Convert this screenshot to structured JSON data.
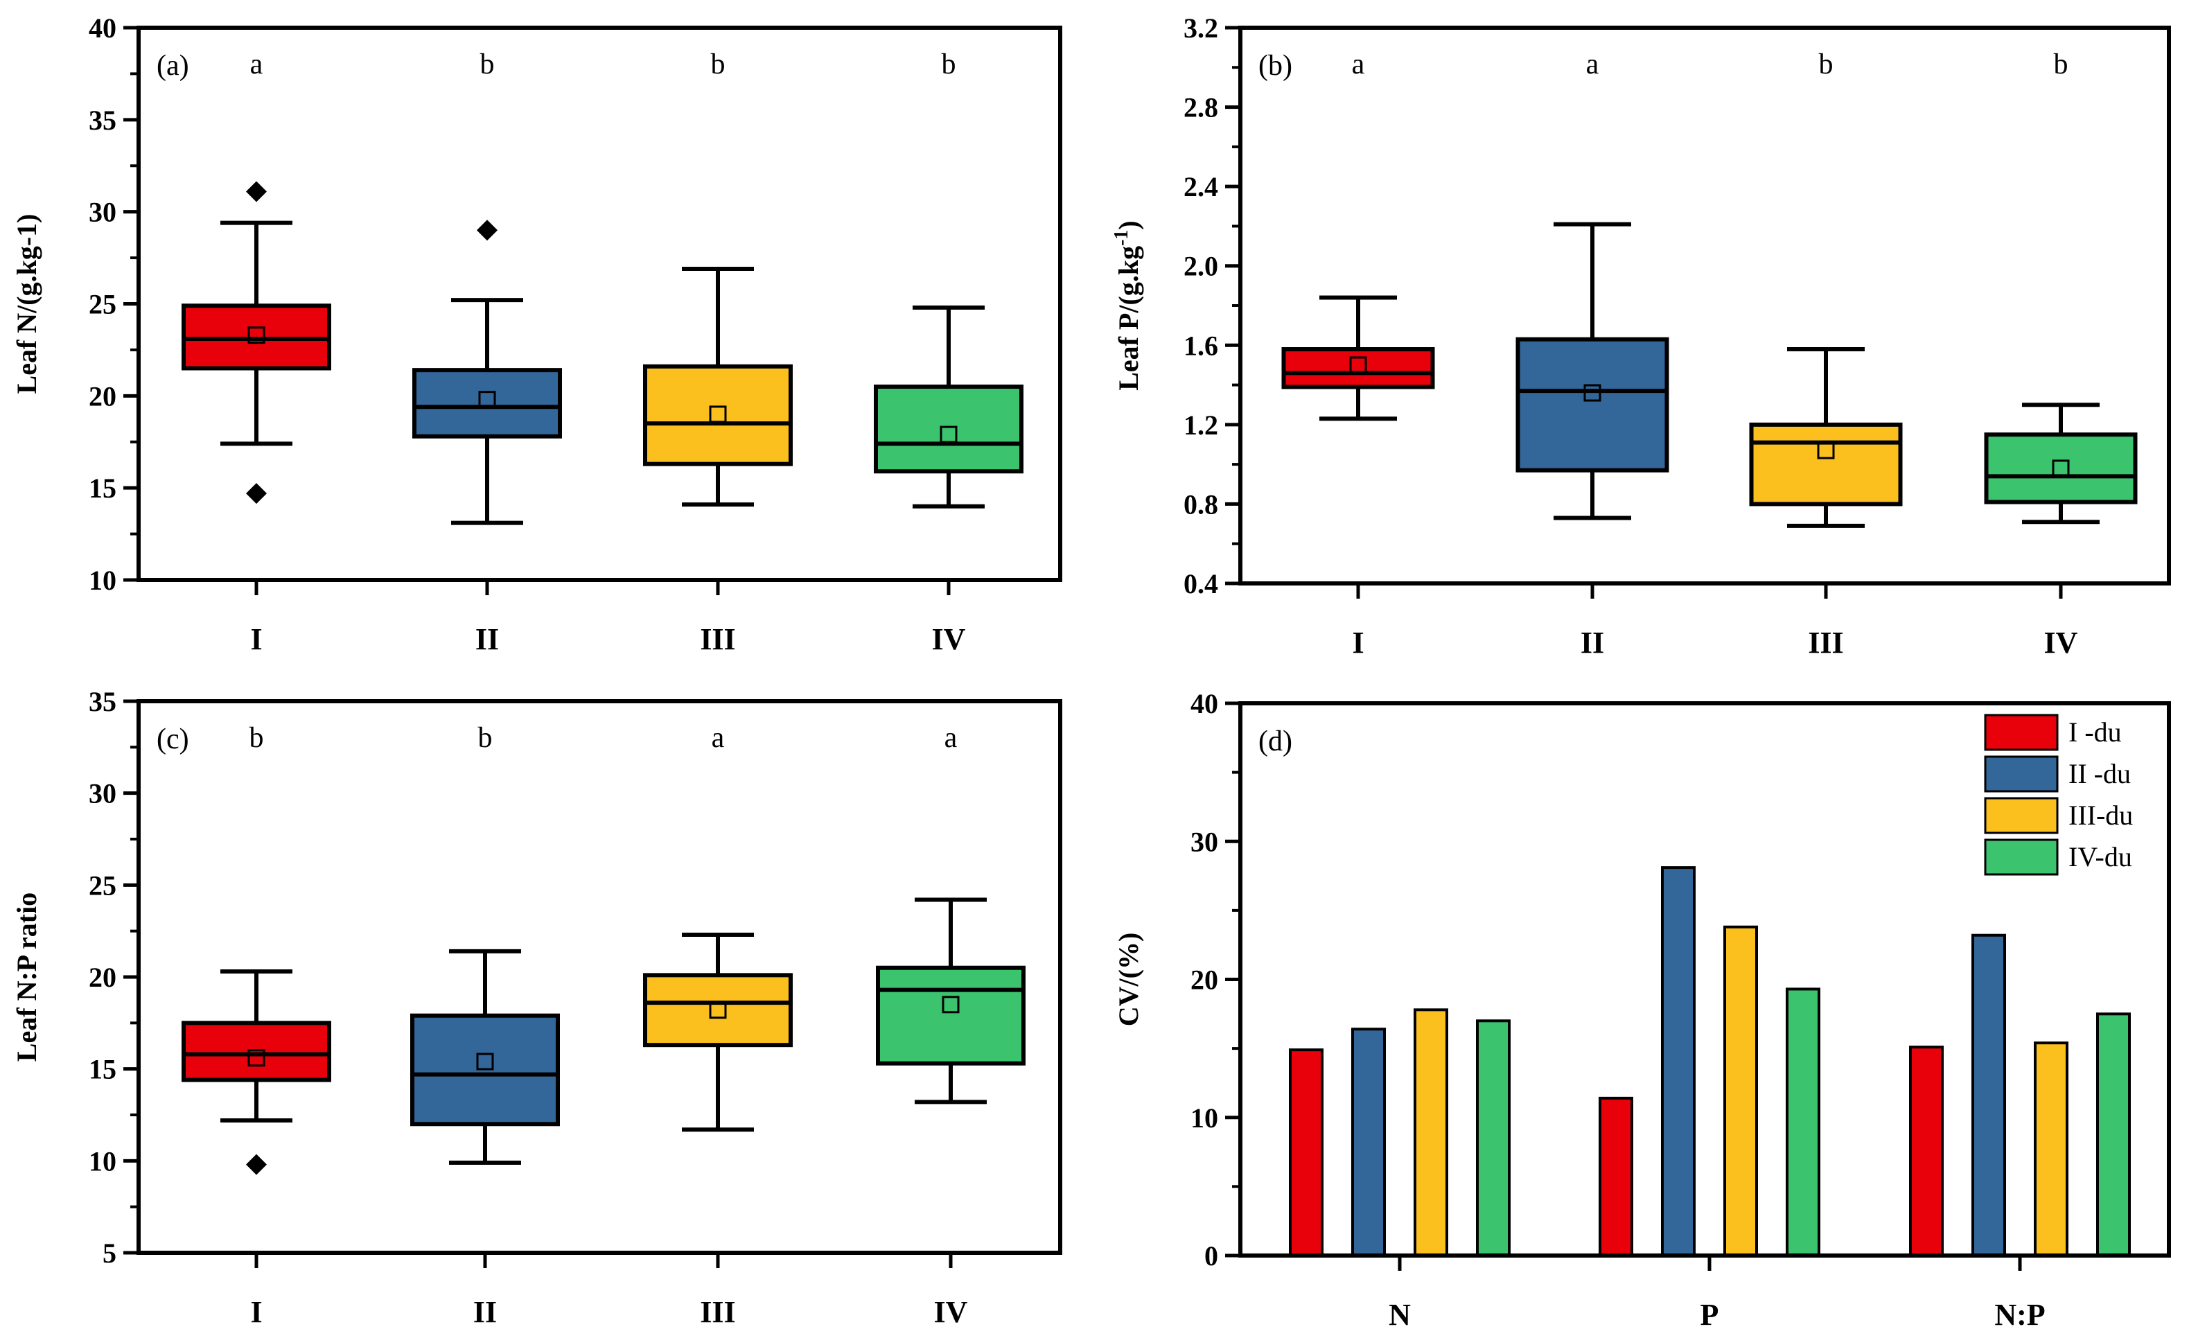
{
  "chart_data": [
    {
      "id": "a",
      "type": "box",
      "panel_label": "(a)",
      "ylabel": "Leaf N/(g.kg-1)",
      "ylim": [
        10,
        40
      ],
      "yticks": [
        "10",
        "15",
        "20",
        "25",
        "30",
        "35",
        "40"
      ],
      "categories": [
        "I",
        "II",
        "III",
        "IV"
      ],
      "letters": [
        "a",
        "b",
        "b",
        "b"
      ],
      "colors": [
        "#e8000b",
        "#336699",
        "#fbc01d",
        "#3cc36e"
      ],
      "boxes": [
        {
          "min": 17.4,
          "q1": 21.5,
          "median": 23.1,
          "q3": 24.9,
          "max": 29.4,
          "mean": 23.3,
          "outliers": [
            31.1,
            14.7
          ]
        },
        {
          "min": 13.1,
          "q1": 17.8,
          "median": 19.4,
          "q3": 21.4,
          "max": 25.2,
          "mean": 19.8,
          "outliers": [
            29.0
          ]
        },
        {
          "min": 14.1,
          "q1": 16.3,
          "median": 18.5,
          "q3": 21.6,
          "max": 26.9,
          "mean": 19.0,
          "outliers": []
        },
        {
          "min": 14.0,
          "q1": 15.9,
          "median": 17.4,
          "q3": 20.5,
          "max": 24.8,
          "mean": 17.9,
          "outliers": []
        }
      ]
    },
    {
      "id": "b",
      "type": "box",
      "panel_label": "(b)",
      "ylabel": "Leaf P/(g.kg",
      "ylabel_sup": "-1",
      "ylabel_end": ")",
      "ylim": [
        0.4,
        3.2
      ],
      "yticks": [
        "0.4",
        "0.8",
        "1.2",
        "1.6",
        "2.0",
        "2.4",
        "2.8",
        "3.2"
      ],
      "categories": [
        "I",
        "II",
        "III",
        "IV"
      ],
      "letters": [
        "a",
        "a",
        "b",
        "b"
      ],
      "colors": [
        "#e8000b",
        "#336699",
        "#fbc01d",
        "#3cc36e"
      ],
      "boxes": [
        {
          "min": 1.23,
          "q1": 1.39,
          "median": 1.46,
          "q3": 1.58,
          "max": 1.84,
          "mean": 1.5,
          "outliers": []
        },
        {
          "min": 0.73,
          "q1": 0.97,
          "median": 1.37,
          "q3": 1.63,
          "max": 2.21,
          "mean": 1.36,
          "outliers": []
        },
        {
          "min": 0.69,
          "q1": 0.8,
          "median": 1.11,
          "q3": 1.2,
          "max": 1.58,
          "mean": 1.07,
          "outliers": []
        },
        {
          "min": 0.71,
          "q1": 0.81,
          "median": 0.94,
          "q3": 1.15,
          "max": 1.3,
          "mean": 0.98,
          "outliers": []
        }
      ]
    },
    {
      "id": "c",
      "type": "box",
      "panel_label": "(c)",
      "ylabel": "Leaf N:P ratio",
      "ylim": [
        5,
        35
      ],
      "yticks": [
        "5",
        "10",
        "15",
        "20",
        "25",
        "30",
        "35"
      ],
      "categories": [
        "I",
        "II",
        "III",
        "IV"
      ],
      "letters": [
        "b",
        "b",
        "a",
        "a"
      ],
      "colors": [
        "#e8000b",
        "#336699",
        "#fbc01d",
        "#3cc36e"
      ],
      "boxes": [
        {
          "min": 12.2,
          "q1": 14.4,
          "median": 15.8,
          "q3": 17.5,
          "max": 20.3,
          "mean": 15.6,
          "outliers": [
            9.8
          ]
        },
        {
          "min": 9.9,
          "q1": 12.0,
          "median": 14.7,
          "q3": 17.9,
          "max": 21.4,
          "mean": 15.4,
          "outliers": []
        },
        {
          "min": 11.7,
          "q1": 16.3,
          "median": 18.6,
          "q3": 20.1,
          "max": 22.3,
          "mean": 18.2,
          "outliers": []
        },
        {
          "min": 13.2,
          "q1": 15.3,
          "median": 19.3,
          "q3": 20.5,
          "max": 24.2,
          "mean": 18.5,
          "outliers": []
        }
      ]
    },
    {
      "id": "d",
      "type": "bar",
      "panel_label": "(d)",
      "ylabel": "CV/(%)",
      "ylim": [
        0,
        40
      ],
      "yticks": [
        "0",
        "10",
        "20",
        "30",
        "40"
      ],
      "categories": [
        "N",
        "P",
        "N:P"
      ],
      "legend_position": "top-right",
      "series": [
        {
          "name": "I   -du",
          "color": "#e8000b",
          "values": [
            14.9,
            11.4,
            15.1
          ]
        },
        {
          "name": "II -du",
          "color": "#336699",
          "values": [
            16.4,
            28.1,
            23.2
          ]
        },
        {
          "name": "III-du",
          "color": "#fbc01d",
          "values": [
            17.8,
            23.8,
            15.4
          ]
        },
        {
          "name": "IV-du",
          "color": "#3cc36e",
          "values": [
            17.0,
            19.3,
            17.5
          ]
        }
      ]
    }
  ]
}
